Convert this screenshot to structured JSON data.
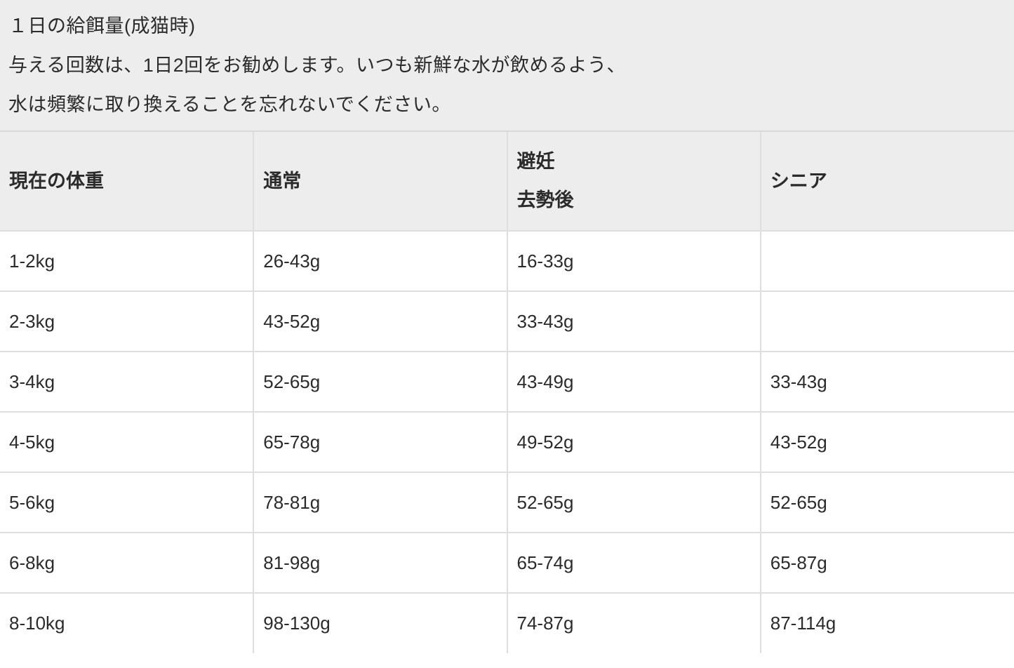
{
  "colors": {
    "section_background": "#ededed",
    "table_border": "#dedede",
    "text": "#2b2b2b",
    "cell_background": "#ffffff"
  },
  "intro": {
    "title": "１日の給餌量(成猫時)",
    "line2": "与える回数は、1日2回をお勧めします。いつも新鮮な水が飲めるよう、",
    "line3": "水は頻繁に取り換えることを忘れないでください。"
  },
  "table": {
    "columns": [
      {
        "label": "現在の体重"
      },
      {
        "label": "通常"
      },
      {
        "label_line1": "避妊",
        "label_line2": "去勢後"
      },
      {
        "label": "シニア"
      }
    ],
    "rows": [
      {
        "weight": "1-2kg",
        "normal": "26-43g",
        "neutered": "16-33g",
        "senior": ""
      },
      {
        "weight": "2-3kg",
        "normal": "43-52g",
        "neutered": "33-43g",
        "senior": ""
      },
      {
        "weight": "3-4kg",
        "normal": "52-65g",
        "neutered": "43-49g",
        "senior": "33-43g"
      },
      {
        "weight": "4-5kg",
        "normal": "65-78g",
        "neutered": "49-52g",
        "senior": "43-52g"
      },
      {
        "weight": "5-6kg",
        "normal": "78-81g",
        "neutered": "52-65g",
        "senior": "52-65g"
      },
      {
        "weight": "6-8kg",
        "normal": "81-98g",
        "neutered": "65-74g",
        "senior": "65-87g"
      },
      {
        "weight": "8-10kg",
        "normal": "98-130g",
        "neutered": "74-87g",
        "senior": "87-114g"
      }
    ]
  }
}
